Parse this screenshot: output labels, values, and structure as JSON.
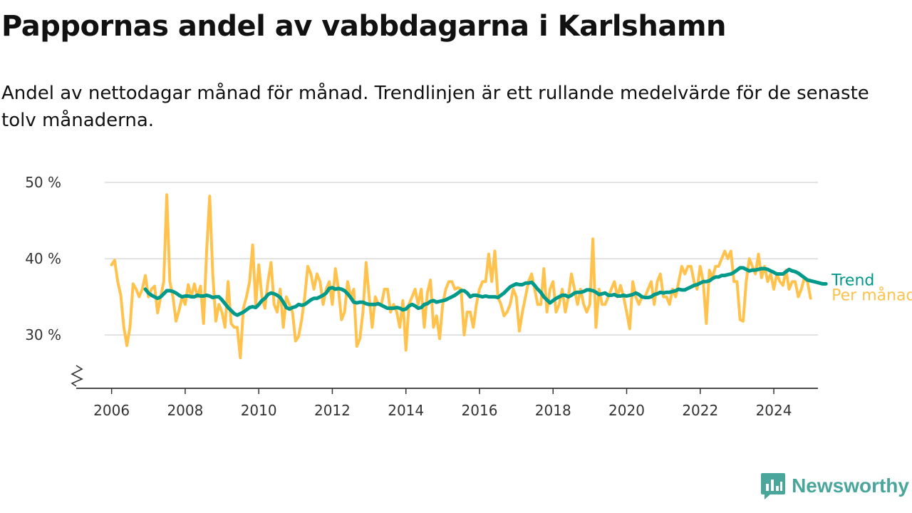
{
  "header": {
    "title": "Pappornas andel av vabbdagarna i Karlshamn",
    "subtitle": "Andel av nettodagar månad för månad. Trendlinjen är ett rullande medelvärde för de senaste tolv månaderna."
  },
  "brand": {
    "name": "Newsworthy",
    "icon": "newsworthy-logo-icon",
    "color": "#4aa59a"
  },
  "colors": {
    "monthly": "#ffc24d",
    "trend": "#00998a",
    "grid": "#d9d9d9",
    "axis": "#333333"
  },
  "chart_data": {
    "type": "line",
    "title": "Pappornas andel av vabbdagarna i Karlshamn",
    "xlabel": "",
    "ylabel": "",
    "xlim": [
      2005.0,
      2025.2
    ],
    "ylim": [
      23,
      51.5
    ],
    "yticks": [
      30,
      40,
      50
    ],
    "ytick_labels": [
      "30 %",
      "40 %",
      "50 %"
    ],
    "xticks": [
      2006,
      2008,
      2010,
      2012,
      2014,
      2016,
      2018,
      2020,
      2022,
      2024
    ],
    "xtick_labels": [
      "2006",
      "2008",
      "2010",
      "2012",
      "2014",
      "2016",
      "2018",
      "2020",
      "2022",
      "2024"
    ],
    "broken_axis": true,
    "grid": true,
    "legend_position": "right-end",
    "series": [
      {
        "name": "Per månad",
        "color": "#ffc24d",
        "x_start": 2006.0,
        "step": 0.08333,
        "values": [
          39.2,
          39.8,
          37.0,
          35.2,
          31.0,
          28.6,
          31.0,
          36.7,
          36.0,
          35.0,
          36.0,
          37.8,
          35.0,
          36.0,
          36.4,
          32.9,
          35.0,
          37.0,
          48.4,
          37.0,
          35.0,
          31.8,
          33.2,
          35.0,
          34.0,
          36.6,
          35.0,
          36.7,
          35.0,
          36.4,
          31.5,
          41.0,
          48.2,
          38.0,
          31.8,
          34.0,
          33.0,
          31.0,
          37.0,
          31.5,
          31.0,
          31.0,
          27.0,
          33.5,
          35.0,
          37.0,
          41.8,
          34.0,
          39.2,
          35.0,
          33.5,
          37.0,
          39.5,
          34.0,
          33.0,
          36.0,
          31.0,
          35.0,
          34.0,
          33.0,
          29.2,
          29.8,
          32.0,
          35.0,
          39.0,
          38.0,
          36.0,
          38.0,
          37.0,
          34.0,
          36.0,
          37.0,
          34.0,
          38.7,
          36.0,
          32.0,
          33.0,
          37.0,
          35.0,
          36.0,
          28.5,
          29.5,
          33.0,
          39.5,
          35.0,
          31.0,
          35.0,
          34.0,
          34.0,
          36.0,
          36.0,
          33.0,
          34.0,
          33.0,
          31.0,
          34.5,
          28.0,
          34.0,
          35.0,
          36.0,
          34.0,
          36.0,
          31.0,
          35.5,
          37.2,
          31.0,
          32.5,
          29.5,
          34.0,
          36.0,
          37.0,
          37.0,
          36.0,
          36.2,
          36.0,
          30.0,
          33.0,
          33.0,
          31.0,
          34.0,
          36.0,
          37.0,
          37.0,
          40.6,
          37.0,
          41.0,
          35.0,
          34.0,
          32.5,
          33.0,
          34.0,
          36.0,
          35.0,
          30.5,
          33.0,
          35.0,
          37.0,
          38.0,
          36.0,
          34.0,
          34.0,
          38.7,
          33.0,
          36.0,
          37.0,
          33.0,
          34.0,
          36.0,
          33.0,
          35.0,
          38.0,
          36.0,
          34.0,
          36.0,
          34.0,
          33.0,
          34.0,
          42.6,
          31.0,
          36.0,
          34.0,
          34.0,
          35.0,
          36.0,
          37.0,
          35.0,
          36.5,
          35.0,
          33.0,
          30.8,
          37.0,
          35.0,
          34.0,
          35.0,
          35.0,
          36.0,
          37.0,
          34.0,
          37.0,
          38.0,
          35.0,
          35.0,
          34.0,
          36.0,
          35.0,
          37.0,
          39.0,
          38.0,
          39.0,
          39.0,
          37.0,
          36.0,
          39.0,
          37.0,
          31.5,
          38.5,
          37.5,
          39.0,
          39.0,
          40.0,
          41.0,
          40.0,
          41.0,
          37.0,
          37.0,
          32.0,
          31.8,
          37.0,
          40.0,
          39.0,
          38.0,
          40.6,
          37.5,
          39.0,
          37.0,
          38.0,
          36.0,
          38.0,
          37.0,
          36.5,
          38.5,
          36.0,
          37.0,
          37.0,
          35.0,
          36.0,
          37.5,
          37.0,
          34.8
        ]
      },
      {
        "name": "Trend",
        "color": "#00998a",
        "x_start": 2006.9167,
        "step": 0.08333,
        "values": [
          36.0,
          35.5,
          35.2,
          35.0,
          34.8,
          35.0,
          35.4,
          35.8,
          35.8,
          35.7,
          35.5,
          35.2,
          35.0,
          35.1,
          35.1,
          35.0,
          35.0,
          35.2,
          35.1,
          35.1,
          35.2,
          35.1,
          34.9,
          35.0,
          35.0,
          34.6,
          34.1,
          33.6,
          33.2,
          32.8,
          32.6,
          32.8,
          33.0,
          33.3,
          33.6,
          33.7,
          33.6,
          34.0,
          34.5,
          34.8,
          35.3,
          35.5,
          35.4,
          35.2,
          34.9,
          34.3,
          33.6,
          33.4,
          33.6,
          33.7,
          34.0,
          33.9,
          34.0,
          34.3,
          34.6,
          34.8,
          34.8,
          35.0,
          35.2,
          35.5,
          36.1,
          36.2,
          36.0,
          36.1,
          36.0,
          35.8,
          35.4,
          34.9,
          34.3,
          34.2,
          34.3,
          34.3,
          34.1,
          34.0,
          34.0,
          34.0,
          34.1,
          33.9,
          33.7,
          33.5,
          33.5,
          33.5,
          33.6,
          33.5,
          33.3,
          33.4,
          33.8,
          34.0,
          33.8,
          33.5,
          33.6,
          34.0,
          34.1,
          34.4,
          34.5,
          34.3,
          34.4,
          34.5,
          34.6,
          34.8,
          35.0,
          35.2,
          35.5,
          35.8,
          35.8,
          35.5,
          35.0,
          35.2,
          35.2,
          35.1,
          35.0,
          35.1,
          35.0,
          35.0,
          35.0,
          34.9,
          35.2,
          35.5,
          35.9,
          36.3,
          36.5,
          36.7,
          36.6,
          36.6,
          36.8,
          36.8,
          36.9,
          36.5,
          36.0,
          35.6,
          35.0,
          34.6,
          34.2,
          34.5,
          34.8,
          35.0,
          35.2,
          35.2,
          35.0,
          35.2,
          35.5,
          35.6,
          35.6,
          35.7,
          35.9,
          35.9,
          35.8,
          35.6,
          35.3,
          35.4,
          35.5,
          35.2,
          35.2,
          35.3,
          35.1,
          35.1,
          35.2,
          35.1,
          35.2,
          35.3,
          35.5,
          35.3,
          35.0,
          34.9,
          34.9,
          35.0,
          35.3,
          35.4,
          35.6,
          35.5,
          35.6,
          35.6,
          35.7,
          35.8,
          36.0,
          35.9,
          35.9,
          36.1,
          36.3,
          36.5,
          36.6,
          36.8,
          37.0,
          37.0,
          37.1,
          37.4,
          37.6,
          37.6,
          37.8,
          37.8,
          37.9,
          38.0,
          38.2,
          38.5,
          38.8,
          38.8,
          38.6,
          38.4,
          38.5,
          38.5,
          38.6,
          38.7,
          38.7,
          38.6,
          38.4,
          38.2,
          38.0,
          38.0,
          38.0,
          38.3,
          38.6,
          38.4,
          38.3,
          38.1,
          37.8,
          37.5,
          37.2,
          37.1,
          37.0,
          36.9,
          36.8,
          36.7,
          36.7
        ]
      }
    ]
  }
}
